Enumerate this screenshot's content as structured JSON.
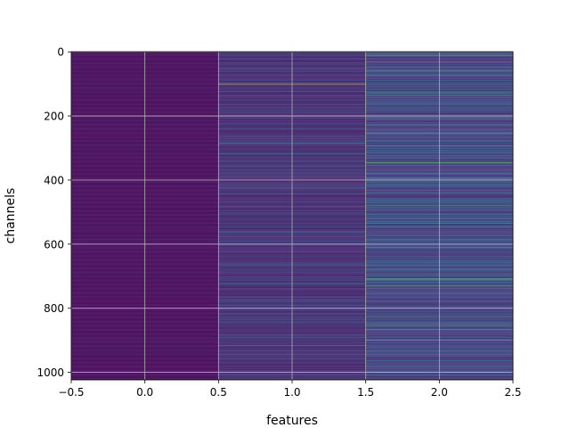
{
  "chart_data": {
    "type": "heatmap",
    "xlabel": "features",
    "ylabel": "channels",
    "xlim": [
      -0.5,
      2.5
    ],
    "ylim": [
      1023.5,
      -0.5
    ],
    "y_inverted": true,
    "x_ticks": [
      -0.5,
      0.0,
      0.5,
      1.0,
      1.5,
      2.0,
      2.5
    ],
    "x_tick_labels": [
      "−0.5",
      "0.0",
      "0.5",
      "1.0",
      "1.5",
      "2.0",
      "2.5"
    ],
    "y_ticks": [
      0,
      200,
      400,
      600,
      800,
      1000
    ],
    "y_tick_labels": [
      "0",
      "200",
      "400",
      "600",
      "800",
      "1000"
    ],
    "grid": true,
    "colormap": "viridis",
    "n_channels": 1024,
    "features": [
      0,
      1,
      2
    ],
    "column_value_scale": [
      0.03,
      0.18,
      0.28
    ],
    "highlight_rows": [
      {
        "feature": 1,
        "channel": 100,
        "value": 0.95
      },
      {
        "feature": 2,
        "channel": 255,
        "value": 0.55
      },
      {
        "feature": 2,
        "channel": 345,
        "value": 0.7
      },
      {
        "feature": 2,
        "channel": 480,
        "value": 0.6
      },
      {
        "feature": 2,
        "channel": 710,
        "value": 0.7
      },
      {
        "feature": 2,
        "channel": 825,
        "value": 0.6
      },
      {
        "feature": 2,
        "channel": 900,
        "value": 0.9
      }
    ]
  }
}
